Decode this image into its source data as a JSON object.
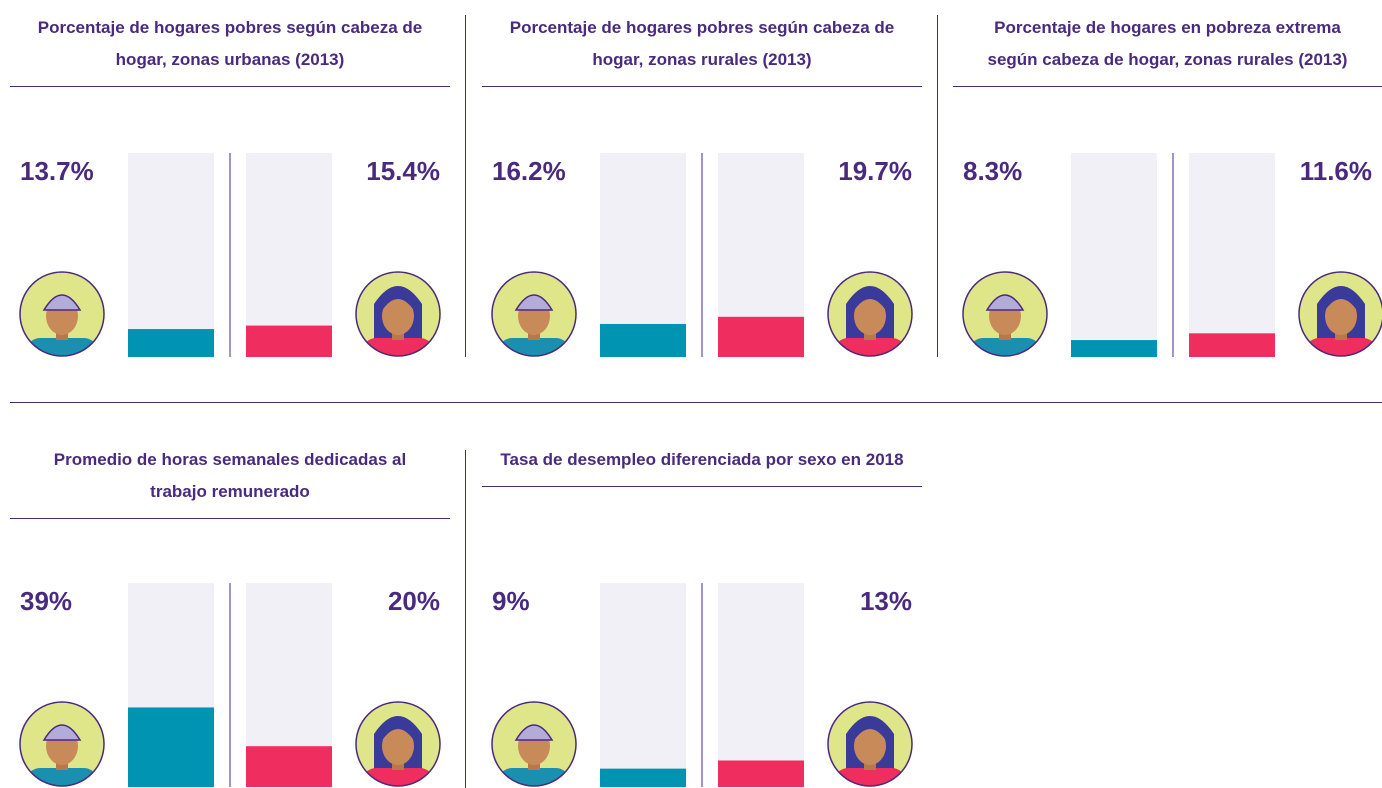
{
  "chart_data": [
    {
      "type": "bar",
      "title": "Porcentaje de hogares pobres según cabeza de hogar, zonas urbanas (2013)",
      "categories": [
        null,
        null
      ],
      "values": [
        13.7,
        15.4
      ],
      "value_labels": [
        "13.7%",
        "15.4%"
      ],
      "colors": [
        "#0093b2",
        "#ef2d5e"
      ],
      "ylim": [
        0,
        100
      ]
    },
    {
      "type": "bar",
      "title": "Porcentaje de hogares pobres según cabeza de hogar, zonas rurales (2013)",
      "categories": [
        null,
        null
      ],
      "values": [
        16.2,
        19.7
      ],
      "value_labels": [
        "16.2%",
        "19.7%"
      ],
      "colors": [
        "#0093b2",
        "#ef2d5e"
      ],
      "ylim": [
        0,
        100
      ]
    },
    {
      "type": "bar",
      "title": "Porcentaje de hogares en pobreza extrema según cabeza de hogar, zonas rurales (2013)",
      "categories": [
        null,
        null
      ],
      "values": [
        8.3,
        11.6
      ],
      "value_labels": [
        "8.3%",
        "11.6%"
      ],
      "colors": [
        "#0093b2",
        "#ef2d5e"
      ],
      "ylim": [
        0,
        100
      ]
    },
    {
      "type": "bar",
      "title": "Promedio de horas semanales dedicadas al trabajo remunerado",
      "categories": [
        null,
        null
      ],
      "values": [
        39,
        20
      ],
      "value_labels": [
        "39%",
        "20%"
      ],
      "colors": [
        "#0093b2",
        "#ef2d5e"
      ],
      "ylim": [
        0,
        100
      ]
    },
    {
      "type": "bar",
      "title": "Tasa de desempleo diferenciada por sexo en 2018",
      "categories": [
        null,
        null
      ],
      "values": [
        9,
        13
      ],
      "value_labels": [
        "9%",
        "13%"
      ],
      "colors": [
        "#0093b2",
        "#ef2d5e"
      ],
      "ylim": [
        0,
        100
      ]
    }
  ]
}
